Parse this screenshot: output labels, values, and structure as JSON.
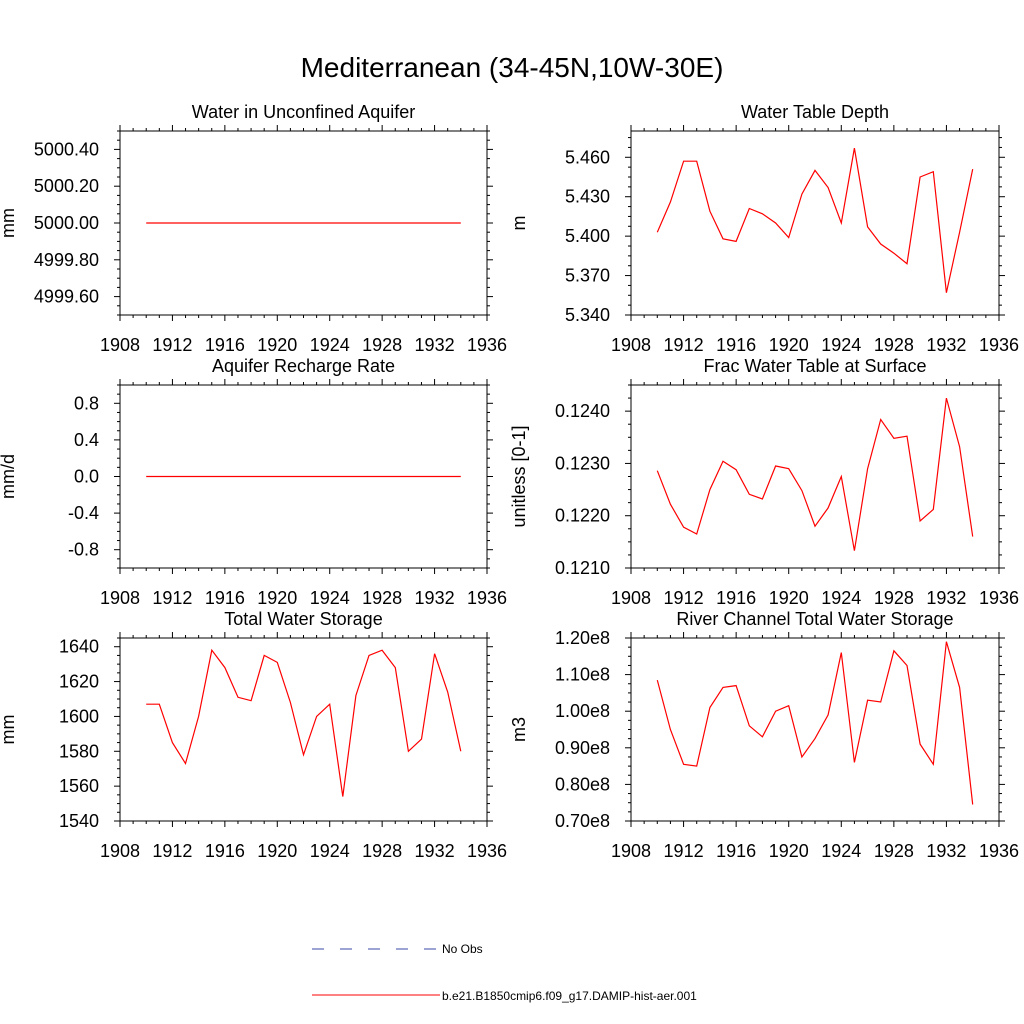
{
  "page": {
    "title": "Mediterranean (34-45N,10W-30E)"
  },
  "legend": {
    "obs_label": "No Obs",
    "model_label": "b.e21.B1850cmip6.f09_g17.DAMIP-hist-aer.001",
    "obs_color": "#3a4aa8",
    "model_color": "#ff0000"
  },
  "chart_data": [
    {
      "type": "line",
      "title": "Water in Unconfined Aquifer",
      "xlabel": "",
      "ylabel": "mm",
      "xlim": [
        1908,
        1936
      ],
      "ylim": [
        4999.5,
        5000.5
      ],
      "xticks": [
        1908,
        1912,
        1916,
        1920,
        1924,
        1928,
        1932,
        1936
      ],
      "yticks": [
        4999.6,
        4999.8,
        5000.0,
        5000.2,
        5000.4
      ],
      "ytick_labels": [
        "4999.60",
        "4999.80",
        "5000.00",
        "5000.20",
        "5000.40"
      ],
      "x": [
        1910,
        1911,
        1912,
        1913,
        1914,
        1915,
        1916,
        1917,
        1918,
        1919,
        1920,
        1921,
        1922,
        1923,
        1924,
        1925,
        1926,
        1927,
        1928,
        1929,
        1930,
        1931,
        1932,
        1933,
        1934
      ],
      "series": [
        {
          "values": [
            5000.0,
            5000.0,
            5000.0,
            5000.0,
            5000.0,
            5000.0,
            5000.0,
            5000.0,
            5000.0,
            5000.0,
            5000.0,
            5000.0,
            5000.0,
            5000.0,
            5000.0,
            5000.0,
            5000.0,
            5000.0,
            5000.0,
            5000.0,
            5000.0,
            5000.0,
            5000.0,
            5000.0,
            5000.0
          ]
        }
      ]
    },
    {
      "type": "line",
      "title": "Water Table Depth",
      "xlabel": "",
      "ylabel": "m",
      "xlim": [
        1908,
        1936
      ],
      "ylim": [
        5.34,
        5.48
      ],
      "xticks": [
        1908,
        1912,
        1916,
        1920,
        1924,
        1928,
        1932,
        1936
      ],
      "yticks": [
        5.34,
        5.37,
        5.4,
        5.43,
        5.46
      ],
      "ytick_labels": [
        "5.340",
        "5.370",
        "5.400",
        "5.430",
        "5.460"
      ],
      "x": [
        1910,
        1911,
        1912,
        1913,
        1914,
        1915,
        1916,
        1917,
        1918,
        1919,
        1920,
        1921,
        1922,
        1923,
        1924,
        1925,
        1926,
        1927,
        1928,
        1929,
        1930,
        1931,
        1932,
        1933,
        1934
      ],
      "series": [
        {
          "values": [
            5.403,
            5.426,
            5.457,
            5.457,
            5.419,
            5.398,
            5.396,
            5.421,
            5.417,
            5.41,
            5.399,
            5.432,
            5.45,
            5.437,
            5.41,
            5.467,
            5.407,
            5.394,
            5.387,
            5.379,
            5.445,
            5.449,
            5.357,
            5.403,
            5.451
          ]
        }
      ]
    },
    {
      "type": "line",
      "title": "Aquifer Recharge Rate",
      "xlabel": "",
      "ylabel": "mm/d",
      "xlim": [
        1908,
        1936
      ],
      "ylim": [
        -1.0,
        1.0
      ],
      "xticks": [
        1908,
        1912,
        1916,
        1920,
        1924,
        1928,
        1932,
        1936
      ],
      "yticks": [
        -0.8,
        -0.4,
        0.0,
        0.4,
        0.8
      ],
      "ytick_labels": [
        "-0.8",
        "-0.4",
        "0.0",
        "0.4",
        "0.8"
      ],
      "x": [
        1910,
        1911,
        1912,
        1913,
        1914,
        1915,
        1916,
        1917,
        1918,
        1919,
        1920,
        1921,
        1922,
        1923,
        1924,
        1925,
        1926,
        1927,
        1928,
        1929,
        1930,
        1931,
        1932,
        1933,
        1934
      ],
      "series": [
        {
          "values": [
            0,
            0,
            0,
            0,
            0,
            0,
            0,
            0,
            0,
            0,
            0,
            0,
            0,
            0,
            0,
            0,
            0,
            0,
            0,
            0,
            0,
            0,
            0,
            0,
            0
          ]
        }
      ]
    },
    {
      "type": "line",
      "title": "Frac Water Table at Surface",
      "xlabel": "",
      "ylabel": "unitless [0-1]",
      "xlim": [
        1908,
        1936
      ],
      "ylim": [
        0.121,
        0.1245
      ],
      "xticks": [
        1908,
        1912,
        1916,
        1920,
        1924,
        1928,
        1932,
        1936
      ],
      "yticks": [
        0.121,
        0.122,
        0.123,
        0.124
      ],
      "ytick_labels": [
        "0.1210",
        "0.1220",
        "0.1230",
        "0.1240"
      ],
      "x": [
        1910,
        1911,
        1912,
        1913,
        1914,
        1915,
        1916,
        1917,
        1918,
        1919,
        1920,
        1921,
        1922,
        1923,
        1924,
        1925,
        1926,
        1927,
        1928,
        1929,
        1930,
        1931,
        1932,
        1933,
        1934
      ],
      "series": [
        {
          "values": [
            0.12286,
            0.12222,
            0.12178,
            0.12165,
            0.1225,
            0.12304,
            0.12288,
            0.12241,
            0.12232,
            0.12295,
            0.1229,
            0.12248,
            0.1218,
            0.12215,
            0.12275,
            0.12133,
            0.1229,
            0.12384,
            0.12348,
            0.12352,
            0.1219,
            0.12212,
            0.12425,
            0.12332,
            0.1216
          ]
        }
      ]
    },
    {
      "type": "line",
      "title": "Total Water Storage",
      "xlabel": "",
      "ylabel": "mm",
      "xlim": [
        1908,
        1936
      ],
      "ylim": [
        1540,
        1645
      ],
      "xticks": [
        1908,
        1912,
        1916,
        1920,
        1924,
        1928,
        1932,
        1936
      ],
      "yticks": [
        1540,
        1560,
        1580,
        1600,
        1620,
        1640
      ],
      "ytick_labels": [
        "1540",
        "1560",
        "1580",
        "1600",
        "1620",
        "1640"
      ],
      "x": [
        1910,
        1911,
        1912,
        1913,
        1914,
        1915,
        1916,
        1917,
        1918,
        1919,
        1920,
        1921,
        1922,
        1923,
        1924,
        1925,
        1926,
        1927,
        1928,
        1929,
        1930,
        1931,
        1932,
        1933,
        1934
      ],
      "series": [
        {
          "values": [
            1607,
            1607,
            1585,
            1573,
            1600,
            1638,
            1628,
            1611,
            1609,
            1635,
            1631,
            1608,
            1578,
            1600,
            1607,
            1554,
            1612,
            1635,
            1638,
            1628,
            1580,
            1587,
            1636,
            1614,
            1580
          ]
        }
      ]
    },
    {
      "type": "line",
      "title": "River Channel Total Water Storage",
      "xlabel": "",
      "ylabel": "m3",
      "xlim": [
        1908,
        1936
      ],
      "ylim": [
        70000000,
        120000000
      ],
      "xticks": [
        1908,
        1912,
        1916,
        1920,
        1924,
        1928,
        1932,
        1936
      ],
      "yticks": [
        70000000,
        80000000,
        90000000,
        100000000,
        110000000,
        120000000
      ],
      "ytick_labels": [
        "0.70e8",
        "0.80e8",
        "0.90e8",
        "1.00e8",
        "1.10e8",
        "1.20e8"
      ],
      "x": [
        1910,
        1911,
        1912,
        1913,
        1914,
        1915,
        1916,
        1917,
        1918,
        1919,
        1920,
        1921,
        1922,
        1923,
        1924,
        1925,
        1926,
        1927,
        1928,
        1929,
        1930,
        1931,
        1932,
        1933,
        1934
      ],
      "series": [
        {
          "values": [
            108500000,
            95000000,
            85500000,
            85000000,
            101000000,
            106500000,
            107000000,
            96000000,
            93000000,
            100000000,
            101500000,
            87500000,
            92500000,
            99000000,
            116000000,
            86000000,
            103000000,
            102500000,
            116500000,
            112500000,
            91000000,
            85500000,
            119000000,
            106500000,
            74500000
          ]
        }
      ]
    }
  ]
}
